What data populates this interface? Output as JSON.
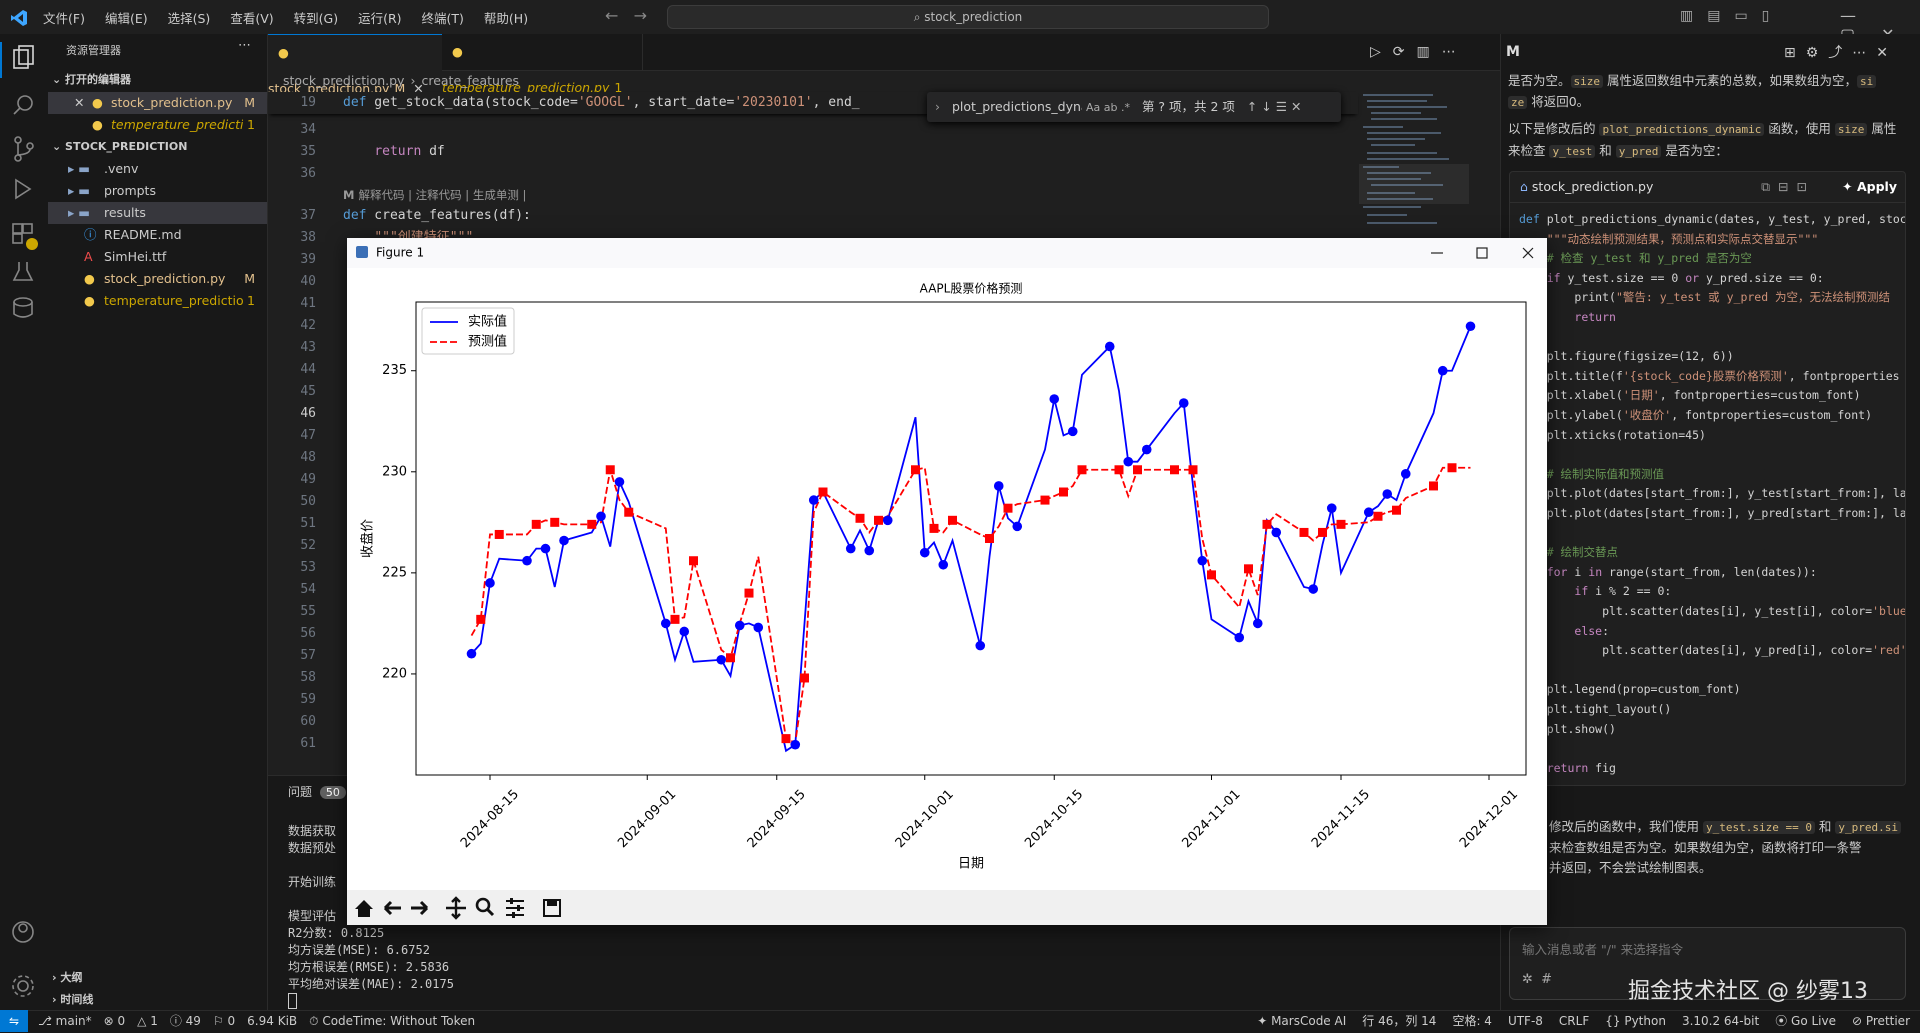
{
  "titlebar": {
    "menu": [
      "文件(F)",
      "编辑(E)",
      "选择(S)",
      "查看(V)",
      "转到(G)",
      "运行(R)",
      "终端(T)",
      "帮助(H)"
    ],
    "search": "stock_prediction"
  },
  "sidebar": {
    "title": "资源管理器",
    "open_editors": "打开的编辑器",
    "open_files": [
      {
        "name": "stock_prediction.py",
        "badge": "M"
      },
      {
        "name": "temperature_predicti...",
        "badge": "1"
      }
    ],
    "project": "STOCK_PREDICTION",
    "tree": [
      {
        "name": ".venv",
        "kind": "folder"
      },
      {
        "name": "prompts",
        "kind": "folder"
      },
      {
        "name": "results",
        "kind": "folder"
      },
      {
        "name": "README.md",
        "kind": "info"
      },
      {
        "name": "SimHei.ttf",
        "kind": "font"
      },
      {
        "name": "stock_prediction.py",
        "kind": "python",
        "badge": "M"
      },
      {
        "name": "temperature_predictio...",
        "kind": "python",
        "badge": "1"
      }
    ],
    "outline": "大纲",
    "timeline": "时间线"
  },
  "editor": {
    "tabs": [
      {
        "name": "stock_prediction.py",
        "badge": "M"
      },
      {
        "name": "temperature_prediction.py",
        "badge": "1"
      }
    ],
    "breadcrumb": [
      "stock_prediction.py",
      "create_features"
    ],
    "sticky": {
      "n": 19,
      "code": "def get_stock_data(stock_code='GOOGL', start_date='20230101', end_"
    },
    "rows": [
      {
        "n": 34
      },
      {
        "n": 35,
        "code": "    return df"
      },
      {
        "n": 36
      },
      {
        "codelens": "解释代码 | 注释代码 | 生成单测 |"
      },
      {
        "n": 37,
        "code": "def create_features(df):"
      },
      {
        "n": 38,
        "code": "    \"\"\"创建特征\"\"\""
      },
      {
        "n": 39
      },
      {
        "n": 40
      },
      {
        "n": 41
      },
      {
        "n": 42
      },
      {
        "n": 43
      },
      {
        "n": 44
      },
      {
        "n": 45
      },
      {
        "n": 46
      },
      {
        "n": 47
      },
      {
        "n": 48
      },
      {
        "n": 49
      },
      {
        "n": 50
      },
      {
        "n": 51
      },
      {
        "n": 52
      },
      {
        "n": 53
      },
      {
        "n": 54
      },
      {
        "n": 55
      },
      {
        "n": 56
      },
      {
        "n": 57
      },
      {
        "n": 58
      },
      {
        "n": 59
      },
      {
        "n": 60
      },
      {
        "n": 61
      }
    ],
    "current_line": 46,
    "find": {
      "query": "plot_predictions_dynai",
      "result": "第 ? 项，共 2 项"
    }
  },
  "panel": {
    "tab": "问题",
    "count": "50",
    "output": [
      [
        "数据获取",
        "数据预处"
      ],
      [
        "开始训练"
      ],
      [
        "模型评估",
        "R2分数: 0.8125",
        "均方误差(MSE): 6.6752",
        "均方根误差(RMSE): 2.5836",
        "平均绝对误差(MAE): 2.0175"
      ]
    ]
  },
  "figure": {
    "title": "Figure 1"
  },
  "chart_data": {
    "type": "line",
    "title": "AAPL股票价格预测",
    "x_label": "日期",
    "y_label": "收盘价",
    "x": [
      "2024-08-13",
      "2024-08-14",
      "2024-08-15",
      "2024-08-16",
      "2024-08-19",
      "2024-08-20",
      "2024-08-21",
      "2024-08-22",
      "2024-08-23",
      "2024-08-26",
      "2024-08-27",
      "2024-08-28",
      "2024-08-29",
      "2024-08-30",
      "2024-09-03",
      "2024-09-04",
      "2024-09-05",
      "2024-09-06",
      "2024-09-09",
      "2024-09-10",
      "2024-09-11",
      "2024-09-12",
      "2024-09-13",
      "2024-09-16",
      "2024-09-17",
      "2024-09-18",
      "2024-09-19",
      "2024-09-20",
      "2024-09-23",
      "2024-09-24",
      "2024-09-25",
      "2024-09-26",
      "2024-09-27",
      "2024-09-30",
      "2024-10-01",
      "2024-10-02",
      "2024-10-03",
      "2024-10-04",
      "2024-10-07",
      "2024-10-08",
      "2024-10-09",
      "2024-10-10",
      "2024-10-11",
      "2024-10-14",
      "2024-10-15",
      "2024-10-16",
      "2024-10-17",
      "2024-10-18",
      "2024-10-21",
      "2024-10-22",
      "2024-10-23",
      "2024-10-24",
      "2024-10-25",
      "2024-10-28",
      "2024-10-29",
      "2024-10-30",
      "2024-10-31",
      "2024-11-01",
      "2024-11-04",
      "2024-11-05",
      "2024-11-06",
      "2024-11-07",
      "2024-11-08",
      "2024-11-11",
      "2024-11-12",
      "2024-11-13",
      "2024-11-14",
      "2024-11-15",
      "2024-11-18",
      "2024-11-19",
      "2024-11-20",
      "2024-11-21",
      "2024-11-22",
      "2024-11-25",
      "2024-11-26",
      "2024-11-27",
      "2024-11-29"
    ],
    "series": [
      {
        "name": "实际值",
        "color": "#0000ff",
        "linestyle": "solid",
        "marker": "circle",
        "values": [
          221.0,
          221.5,
          224.5,
          225.7,
          225.6,
          226.2,
          226.2,
          224.3,
          226.6,
          227.0,
          227.8,
          226.3,
          229.5,
          228.5,
          222.5,
          220.7,
          222.1,
          220.6,
          220.7,
          219.9,
          222.4,
          222.5,
          222.3,
          216.2,
          216.5,
          222.5,
          228.6,
          229.0,
          226.2,
          227.1,
          226.1,
          227.6,
          227.6,
          232.7,
          226.0,
          226.5,
          225.4,
          226.6,
          221.4,
          225.8,
          229.3,
          227.7,
          227.3,
          231.1,
          233.6,
          231.8,
          232.0,
          234.8,
          236.2,
          234.0,
          230.5,
          230.5,
          231.1,
          232.9,
          233.4,
          229.3,
          225.6,
          222.7,
          221.8,
          223.6,
          222.5,
          227.6,
          227.0,
          224.3,
          224.2,
          226.4,
          228.2,
          225.0,
          228.0,
          228.3,
          228.9,
          228.6,
          229.9,
          232.9,
          235.0,
          235.0,
          237.2
        ]
      },
      {
        "name": "预测值",
        "color": "#ff0000",
        "linestyle": "dashed",
        "marker": "square",
        "values": [
          221.9,
          222.7,
          226.9,
          226.9,
          226.9,
          227.4,
          227.6,
          227.5,
          227.4,
          227.4,
          227.5,
          230.1,
          228.6,
          228.0,
          227.2,
          222.7,
          222.8,
          225.6,
          221.2,
          220.8,
          222.5,
          224.0,
          225.8,
          216.8,
          216.6,
          219.8,
          228.0,
          229.0,
          228.0,
          227.7,
          227.0,
          227.6,
          227.8,
          230.1,
          230.2,
          227.2,
          227.0,
          227.6,
          226.9,
          226.7,
          227.3,
          228.2,
          228.4,
          228.6,
          228.8,
          229.0,
          229.3,
          230.1,
          230.1,
          230.1,
          228.8,
          230.1,
          230.1,
          230.1,
          230.1,
          230.1,
          226.7,
          224.9,
          223.3,
          225.2,
          223.9,
          227.4,
          227.9,
          227.0,
          226.6,
          227.0,
          227.4,
          227.4,
          227.5,
          227.8,
          228.0,
          228.1,
          228.7,
          229.3,
          230.2,
          230.2,
          230.2
        ]
      }
    ],
    "xlim": [
      "2024-08-07",
      "2024-12-05"
    ],
    "xticks": [
      "2024-08-15",
      "2024-09-01",
      "2024-09-15",
      "2024-10-01",
      "2024-10-15",
      "2024-11-01",
      "2024-11-15",
      "2024-12-01"
    ],
    "ylim": [
      215,
      238.4
    ],
    "yticks": [
      220,
      225,
      230,
      235
    ],
    "grid": false,
    "legend": "upper left"
  },
  "chat": {
    "intro": [
      [
        {
          "text": "是否为空。"
        },
        {
          "code": "size"
        },
        {
          "text": " 属性返回数组中元素的总数，如果数组为空，"
        },
        {
          "code": "si"
        }
      ],
      [
        {
          "code": "ze"
        },
        {
          "text": " 将返回0。"
        }
      ],
      [
        {
          "text": "以下是修改后的 "
        },
        {
          "code": "plot_predictions_dynamic"
        },
        {
          "text": " 函数，使用 "
        },
        {
          "code": "size"
        },
        {
          "text": " 属性"
        }
      ],
      [
        {
          "text": "来检查 "
        },
        {
          "code": "y_test"
        },
        {
          "text": " 和 "
        },
        {
          "code": "y_pred"
        },
        {
          "text": " 是否为空："
        }
      ]
    ],
    "file": "stock_prediction.py",
    "apply": "Apply",
    "code_blocks": [
      [
        "def plot_predictions_dynamic(dates, y_test, y_pred, stoc",
        "    \"\"\"动态绘制预测结果，预测点和实际点交替显示\"\"\"",
        "    # 检查 y_test 和 y_pred 是否为空",
        "    if y_test.size == 0 or y_pred.size == 0:",
        "        print(\"警告: y_test 或 y_pred 为空，无法绘制预测结",
        "        return"
      ],
      [
        "    plt.figure(figsize=(12, 6))",
        "    plt.title(f'{stock_code}股票价格预测', fontproperties",
        "    plt.xlabel('日期', fontproperties=custom_font)",
        "    plt.ylabel('收盘价', fontproperties=custom_font)",
        "    plt.xticks(rotation=45)"
      ],
      [
        "    # 绘制实际值和预测值",
        "    plt.plot(dates[start_from:], y_test[start_from:], la",
        "    plt.plot(dates[start_from:], y_pred[start_from:], la"
      ],
      [
        "    # 绘制交替点",
        "    for i in range(start_from, len(dates)):",
        "        if i % 2 == 0:",
        "            plt.scatter(dates[i], y_test[i], color='blue",
        "        else:",
        "            plt.scatter(dates[i], y_pred[i], color='red'"
      ],
      [
        "    plt.legend(prop=custom_font)",
        "    plt.tight_layout()",
        "    plt.show()"
      ],
      [
        "    return fig"
      ]
    ],
    "outro": [
      [
        {
          "text": "修改后的函数中，我们使用 "
        },
        {
          "code": "y_test.size == 0"
        },
        {
          "text": " 和 "
        },
        {
          "code": "y_pred.si"
        }
      ],
      [
        {
          "text": "来检查数组是否为空。如果数组为空，函数将打印一条警"
        }
      ],
      [
        {
          "text": "并返回，不会尝试绘制图表。"
        }
      ]
    ],
    "input_placeholder": "输入消息或者 \"/\" 来选择指令"
  },
  "statusbar": {
    "left": [
      "main*",
      "0",
      "1",
      "49",
      "0",
      "6.94 KiB",
      "CodeTime: Without Token"
    ],
    "right": [
      "MarsCode AI",
      "行 46，列 14",
      "空格: 4",
      "UTF-8",
      "CRLF",
      "Python",
      "3.10.2 64-bit",
      "Go Live",
      "Prettier"
    ]
  },
  "watermark": "掘金技术社区 @ 纱雾13"
}
